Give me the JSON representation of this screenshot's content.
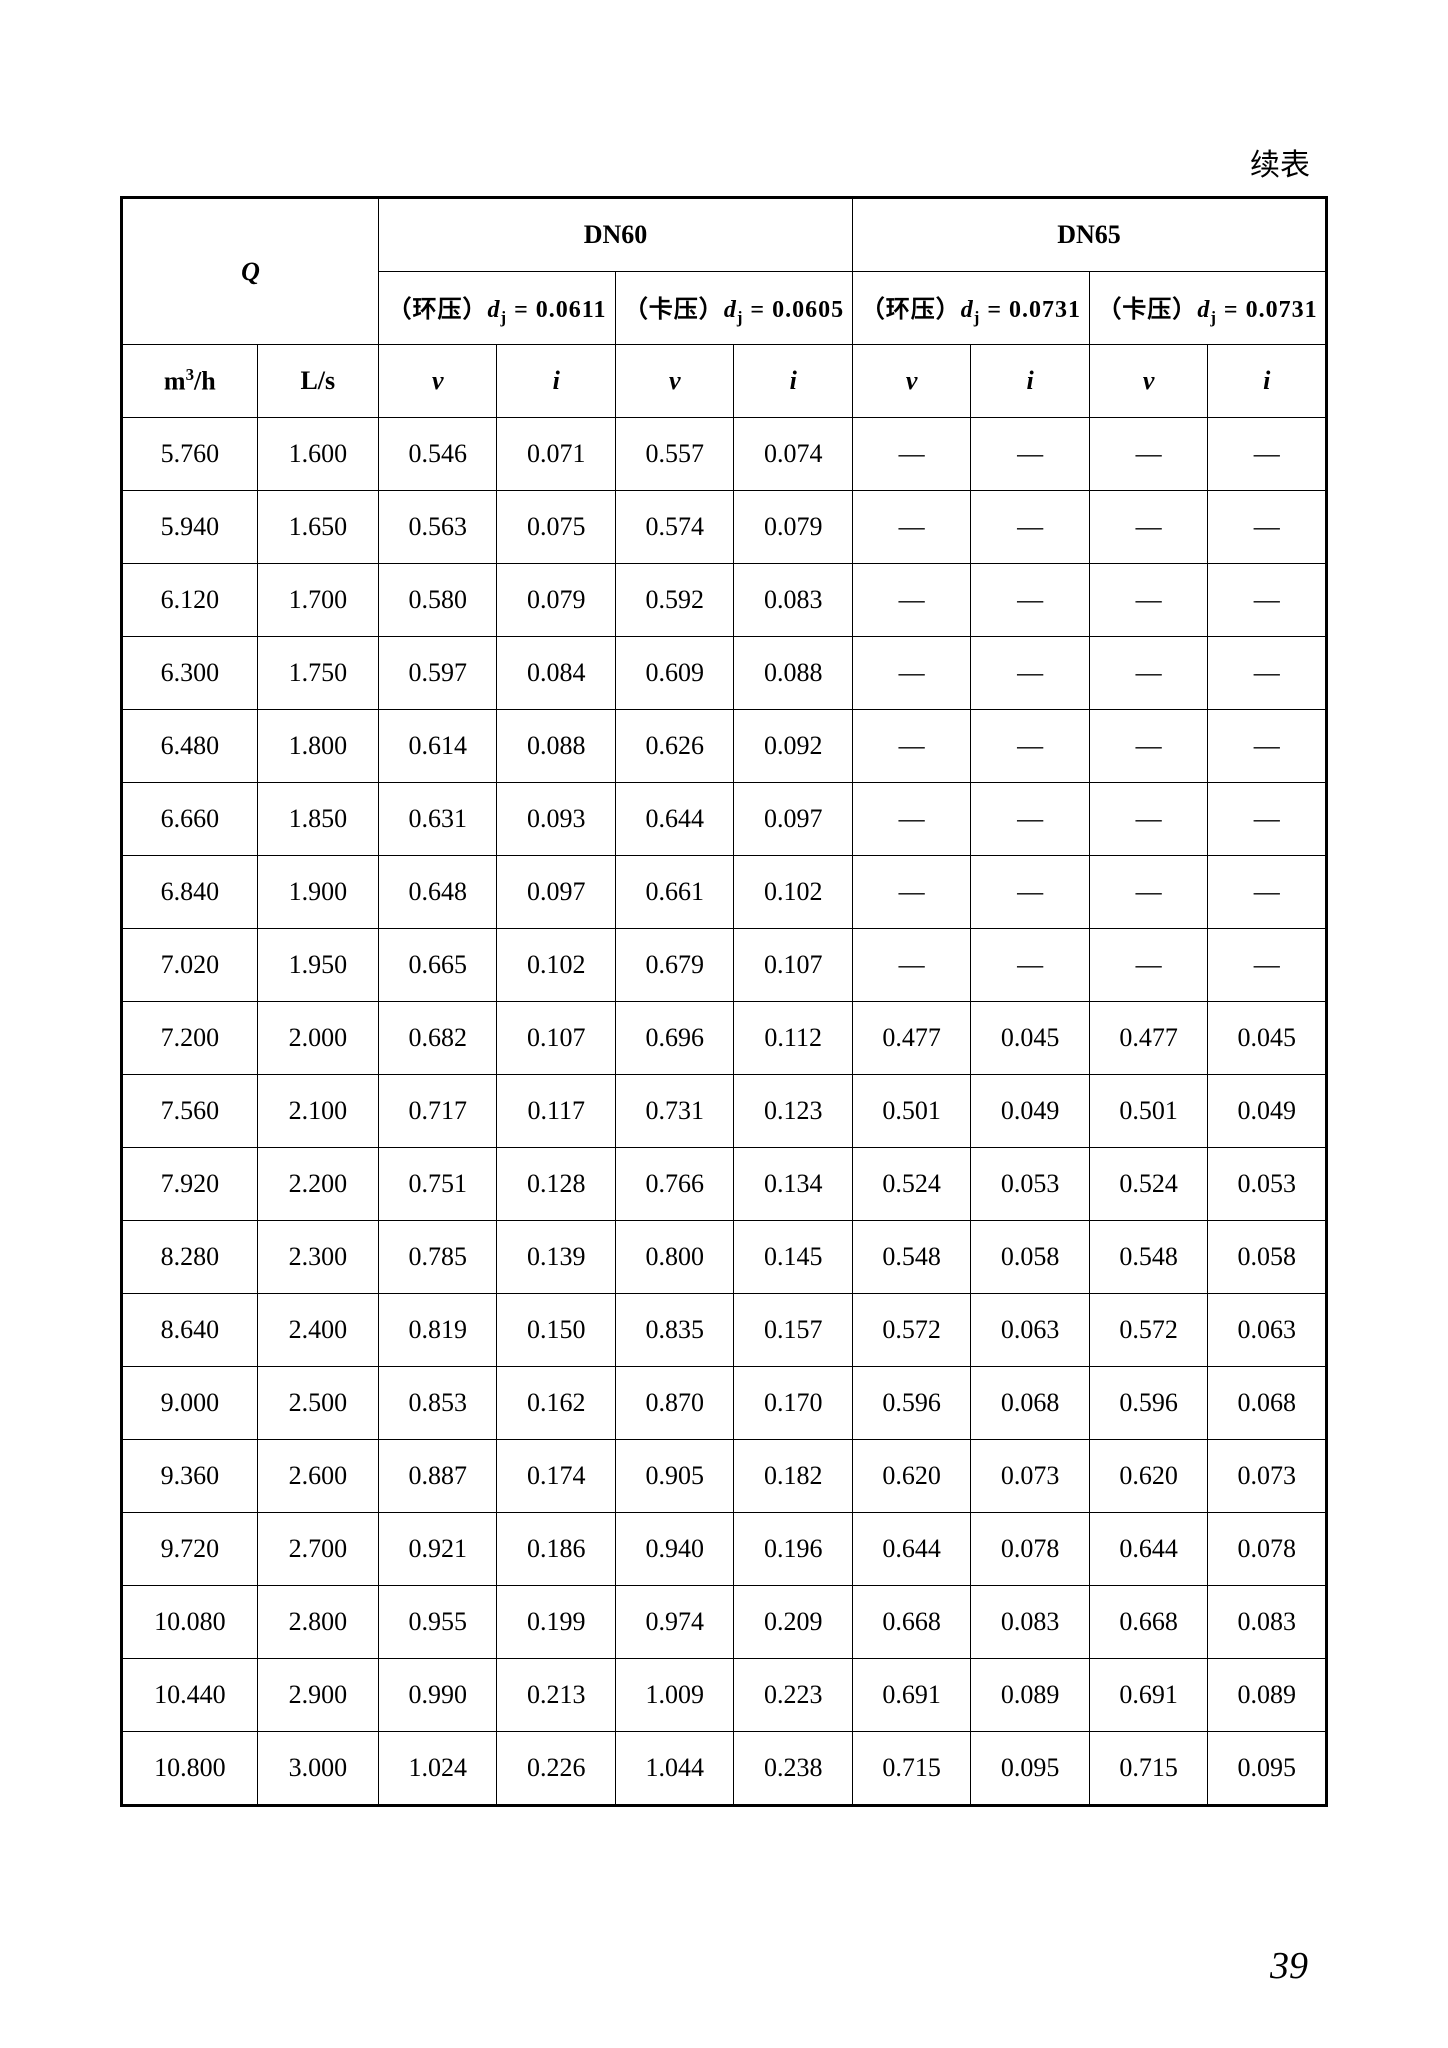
{
  "caption": "续表",
  "page_number": "39",
  "table": {
    "type": "table",
    "background_color": "#ffffff",
    "border_color": "#000000",
    "outer_border_width": 3,
    "inner_border_width": 1,
    "font_family": "Times New Roman / SimSun",
    "font_size_main": 26,
    "font_size_sub": 24,
    "header": {
      "Q_symbol": "Q",
      "dn60": "DN60",
      "dn65": "DN65",
      "sub_dn60_a_prefix": "（环压）",
      "sub_dn60_a_d": "d",
      "sub_dn60_a_sub": "j",
      "sub_dn60_a_val": " = 0.0611",
      "sub_dn60_b_prefix": "（卡压）",
      "sub_dn60_b_d": "d",
      "sub_dn60_b_sub": "j",
      "sub_dn60_b_val": " = 0.0605",
      "sub_dn65_a_prefix": "（环压）",
      "sub_dn65_a_d": "d",
      "sub_dn65_a_sub": "j",
      "sub_dn65_a_val": " = 0.0731",
      "sub_dn65_b_prefix": "（卡压）",
      "sub_dn65_b_d": "d",
      "sub_dn65_b_sub": "j",
      "sub_dn65_b_val": " = 0.0731",
      "unit_m3h_m": "m",
      "unit_m3h_sup": "3",
      "unit_m3h_tail": "/h",
      "unit_Ls": "L/s",
      "v": "v",
      "i": "i"
    },
    "rows": [
      [
        "5.760",
        "1.600",
        "0.546",
        "0.071",
        "0.557",
        "0.074",
        "—",
        "—",
        "—",
        "—"
      ],
      [
        "5.940",
        "1.650",
        "0.563",
        "0.075",
        "0.574",
        "0.079",
        "—",
        "—",
        "—",
        "—"
      ],
      [
        "6.120",
        "1.700",
        "0.580",
        "0.079",
        "0.592",
        "0.083",
        "—",
        "—",
        "—",
        "—"
      ],
      [
        "6.300",
        "1.750",
        "0.597",
        "0.084",
        "0.609",
        "0.088",
        "—",
        "—",
        "—",
        "—"
      ],
      [
        "6.480",
        "1.800",
        "0.614",
        "0.088",
        "0.626",
        "0.092",
        "—",
        "—",
        "—",
        "—"
      ],
      [
        "6.660",
        "1.850",
        "0.631",
        "0.093",
        "0.644",
        "0.097",
        "—",
        "—",
        "—",
        "—"
      ],
      [
        "6.840",
        "1.900",
        "0.648",
        "0.097",
        "0.661",
        "0.102",
        "—",
        "—",
        "—",
        "—"
      ],
      [
        "7.020",
        "1.950",
        "0.665",
        "0.102",
        "0.679",
        "0.107",
        "—",
        "—",
        "—",
        "—"
      ],
      [
        "7.200",
        "2.000",
        "0.682",
        "0.107",
        "0.696",
        "0.112",
        "0.477",
        "0.045",
        "0.477",
        "0.045"
      ],
      [
        "7.560",
        "2.100",
        "0.717",
        "0.117",
        "0.731",
        "0.123",
        "0.501",
        "0.049",
        "0.501",
        "0.049"
      ],
      [
        "7.920",
        "2.200",
        "0.751",
        "0.128",
        "0.766",
        "0.134",
        "0.524",
        "0.053",
        "0.524",
        "0.053"
      ],
      [
        "8.280",
        "2.300",
        "0.785",
        "0.139",
        "0.800",
        "0.145",
        "0.548",
        "0.058",
        "0.548",
        "0.058"
      ],
      [
        "8.640",
        "2.400",
        "0.819",
        "0.150",
        "0.835",
        "0.157",
        "0.572",
        "0.063",
        "0.572",
        "0.063"
      ],
      [
        "9.000",
        "2.500",
        "0.853",
        "0.162",
        "0.870",
        "0.170",
        "0.596",
        "0.068",
        "0.596",
        "0.068"
      ],
      [
        "9.360",
        "2.600",
        "0.887",
        "0.174",
        "0.905",
        "0.182",
        "0.620",
        "0.073",
        "0.620",
        "0.073"
      ],
      [
        "9.720",
        "2.700",
        "0.921",
        "0.186",
        "0.940",
        "0.196",
        "0.644",
        "0.078",
        "0.644",
        "0.078"
      ],
      [
        "10.080",
        "2.800",
        "0.955",
        "0.199",
        "0.974",
        "0.209",
        "0.668",
        "0.083",
        "0.668",
        "0.083"
      ],
      [
        "10.440",
        "2.900",
        "0.990",
        "0.213",
        "1.009",
        "0.223",
        "0.691",
        "0.089",
        "0.691",
        "0.089"
      ],
      [
        "10.800",
        "3.000",
        "1.024",
        "0.226",
        "1.044",
        "0.238",
        "0.715",
        "0.095",
        "0.715",
        "0.095"
      ]
    ]
  }
}
